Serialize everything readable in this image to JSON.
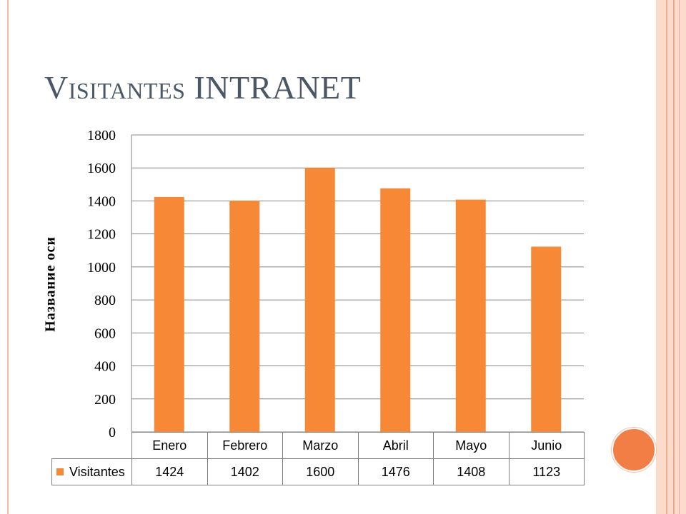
{
  "slide": {
    "title": "Visitantes INTRANET"
  },
  "chart_data": {
    "type": "bar",
    "title": "",
    "xlabel": "",
    "ylabel": "Название оси",
    "ylim": [
      0,
      1800
    ],
    "yticks": [
      0,
      200,
      400,
      600,
      800,
      1000,
      1200,
      1400,
      1600,
      1800
    ],
    "grid": true,
    "legend": "data-table",
    "categories": [
      "Enero",
      "Febrero",
      "Marzo",
      "Abril",
      "Mayo",
      "Junio"
    ],
    "series": [
      {
        "name": "Visitantes",
        "color": "#f68836",
        "values": [
          1424,
          1402,
          1600,
          1476,
          1408,
          1123
        ]
      }
    ]
  },
  "colors": {
    "bar": "#f68836",
    "title": "#4c5766",
    "accent": "#f27e45"
  }
}
